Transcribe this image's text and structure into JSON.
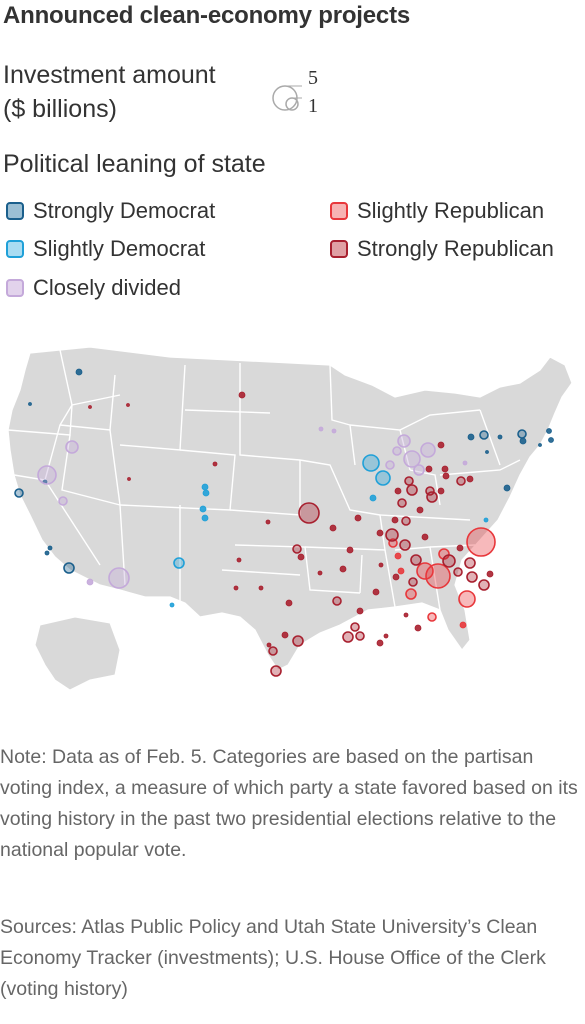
{
  "title": "Announced clean-economy projects",
  "size_legend": {
    "label_line1": "Investment amount",
    "label_line2": "($ billions)",
    "large_value": "5",
    "small_value": "1"
  },
  "legend": {
    "title": "Political leaning of state",
    "items": [
      {
        "label": "Strongly Democrat",
        "fill": "#9bbfd4",
        "stroke": "#1a5f8c"
      },
      {
        "label": "Slightly Republican",
        "fill": "#f7b3b3",
        "stroke": "#e8373b"
      },
      {
        "label": "Slightly Democrat",
        "fill": "#a9dcf2",
        "stroke": "#1fa0d8"
      },
      {
        "label": "Strongly Republican",
        "fill": "#e0a0a4",
        "stroke": "#a8202f"
      },
      {
        "label": "Closely divided",
        "fill": "#e2d3ec",
        "stroke": "#c4a9da"
      }
    ]
  },
  "colors": {
    "strong_dem": "#1a5f8c",
    "slight_dem": "#1fa0d8",
    "divided": "#c4a9da",
    "slight_rep": "#e8373b",
    "strong_rep": "#a8202f",
    "land": "#d9d9d9",
    "borders": "#ffffff"
  },
  "note": "Note: Data as of Feb. 5. Categories are based on the partisan voting index, a measure of which party a state favored based on its voting history in the past two presidential elections relative to the national popular vote.",
  "sources": "Sources: Atlas Public Policy and Utah State University’s Clean Economy Tracker (investments); U.S. House Office of the Clerk (voting history)"
}
